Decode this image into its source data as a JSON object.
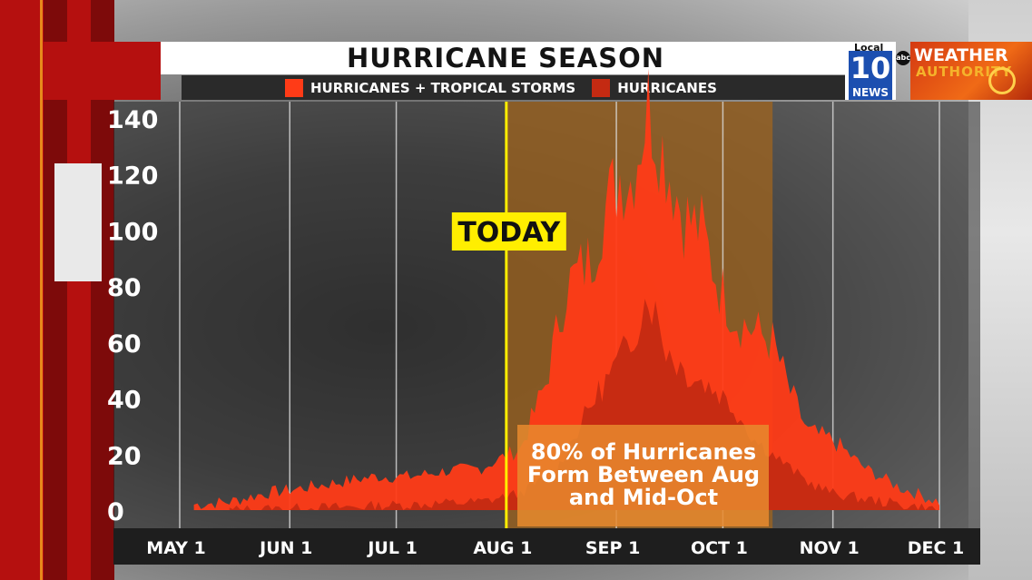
{
  "chart_data": {
    "type": "area",
    "title": "HURRICANE SEASON",
    "x_ticks": [
      "MAY 1",
      "JUN 1",
      "JUL 1",
      "AUG 1",
      "SEP 1",
      "OCT 1",
      "NOV 1",
      "DEC 1"
    ],
    "y_ticks": [
      "0",
      "20",
      "40",
      "60",
      "80",
      "100",
      "120",
      "140"
    ],
    "ylim": [
      0,
      145
    ],
    "grid": true,
    "legend_position": "top",
    "series": [
      {
        "name": "HURRICANES + TROPICAL STORMS",
        "color": "#ff3b17",
        "x": [
          "May 5",
          "May 15",
          "May 25",
          "Jun 5",
          "Jun 15",
          "Jun 25",
          "Jul 5",
          "Jul 15",
          "Jul 25",
          "Aug 5",
          "Aug 12",
          "Aug 18",
          "Aug 25",
          "Aug 28",
          "Sep 2",
          "Sep 5",
          "Sep 10",
          "Sep 15",
          "Sep 20",
          "Sep 25",
          "Sep 30",
          "Oct 5",
          "Oct 10",
          "Oct 15",
          "Oct 20",
          "Oct 25",
          "Nov 1",
          "Nov 10",
          "Nov 20",
          "Dec 1"
        ],
        "y": [
          2,
          3,
          6,
          8,
          10,
          12,
          12,
          14,
          15,
          22,
          45,
          80,
          90,
          105,
          120,
          118,
          145,
          125,
          105,
          100,
          80,
          68,
          64,
          60,
          42,
          28,
          25,
          15,
          8,
          3
        ]
      },
      {
        "name": "HURRICANES",
        "color": "#c42a12",
        "x": [
          "May 15",
          "Jun 15",
          "Jul 5",
          "Jul 25",
          "Aug 5",
          "Aug 15",
          "Aug 25",
          "Sep 1",
          "Sep 5",
          "Sep 10",
          "Sep 15",
          "Sep 20",
          "Sep 25",
          "Sep 30",
          "Oct 5",
          "Oct 10",
          "Oct 15",
          "Oct 20",
          "Oct 25",
          "Nov 1",
          "Nov 10",
          "Nov 20",
          "Dec 1"
        ],
        "y": [
          0,
          1,
          2,
          3,
          6,
          14,
          38,
          52,
          60,
          78,
          58,
          50,
          46,
          42,
          35,
          25,
          20,
          15,
          10,
          6,
          4,
          2,
          0
        ]
      }
    ],
    "highlight": {
      "range": [
        "Aug 1",
        "Oct 15"
      ],
      "color": "#a0641e"
    },
    "annotations": [
      {
        "text": "TODAY",
        "x": "Aug 1",
        "color": "#ffee00"
      },
      {
        "text": "80% of Hurricanes Form Between Aug and Mid-Oct",
        "color": "#e88a2e"
      }
    ]
  },
  "legend": {
    "series1_label": "HURRICANES + TROPICAL STORMS",
    "series2_label": "HURRICANES",
    "series1_color": "#ff3b17",
    "series2_color": "#c42a12"
  },
  "annotation": {
    "today_label": "TODAY",
    "box_line1": "80% of Hurricanes",
    "box_line2": "Form Between Aug",
    "box_line3": "and Mid-Oct"
  },
  "logo": {
    "local": "Local",
    "channel": "10",
    "news": "NEWS",
    "network": "abc",
    "brand_line1": "WEATHER",
    "brand_line2": "AUTHORITY"
  }
}
